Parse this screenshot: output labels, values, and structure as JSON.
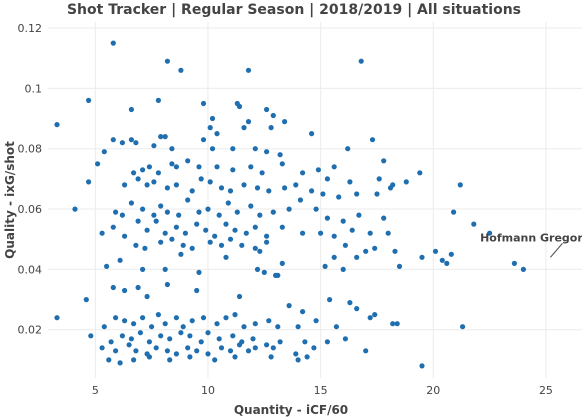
{
  "chart_data": {
    "type": "scatter",
    "title": "Shot Tracker | Regular Season | 2018/2019 | All situations",
    "xlabel": "Quantity - iCF/60",
    "ylabel": "Quality - ixG/shot",
    "xlim": [
      2.9,
      26.6
    ],
    "ylim": [
      0.004,
      0.122
    ],
    "x_ticks": [
      5,
      10,
      15,
      20,
      25
    ],
    "x_tick_labels": [
      "5",
      "10",
      "15",
      "20",
      "25"
    ],
    "y_ticks": [
      0.02,
      0.04,
      0.06,
      0.08,
      0.1,
      0.12
    ],
    "y_tick_labels": [
      "0.02",
      "0.04",
      "0.06",
      "0.08",
      "0.1",
      "0.12"
    ],
    "grid": true,
    "marker_color": "#1f6fb0",
    "annotation": {
      "text": "Hofmann Gregory",
      "x": 25.2,
      "y": 0.044
    },
    "points": [
      [
        5.8,
        0.115
      ],
      [
        8.2,
        0.109
      ],
      [
        8.8,
        0.106
      ],
      [
        16.8,
        0.109
      ],
      [
        11.8,
        0.106
      ],
      [
        3.3,
        0.088
      ],
      [
        4.7,
        0.096
      ],
      [
        6.6,
        0.093
      ],
      [
        7.8,
        0.096
      ],
      [
        9.8,
        0.095
      ],
      [
        11.3,
        0.095
      ],
      [
        11.4,
        0.094
      ],
      [
        12.6,
        0.093
      ],
      [
        12.9,
        0.091
      ],
      [
        10.2,
        0.09
      ],
      [
        10.1,
        0.087
      ],
      [
        11.8,
        0.089
      ],
      [
        12.8,
        0.087
      ],
      [
        13.4,
        0.089
      ],
      [
        14.6,
        0.085
      ],
      [
        17.3,
        0.083
      ],
      [
        10.4,
        0.085
      ],
      [
        11.6,
        0.087
      ],
      [
        7.9,
        0.084
      ],
      [
        5.4,
        0.079
      ],
      [
        5.8,
        0.083
      ],
      [
        6.2,
        0.082
      ],
      [
        6.6,
        0.083
      ],
      [
        6.8,
        0.082
      ],
      [
        7.6,
        0.081
      ],
      [
        8.1,
        0.084
      ],
      [
        8.4,
        0.08
      ],
      [
        9.8,
        0.083
      ],
      [
        10.2,
        0.08
      ],
      [
        11.1,
        0.08
      ],
      [
        12.1,
        0.08
      ],
      [
        12.6,
        0.079
      ],
      [
        13.2,
        0.078
      ],
      [
        16.2,
        0.08
      ],
      [
        17.8,
        0.076
      ],
      [
        5.1,
        0.075
      ],
      [
        6.7,
        0.072
      ],
      [
        7.1,
        0.073
      ],
      [
        7.4,
        0.074
      ],
      [
        8.4,
        0.075
      ],
      [
        8.6,
        0.074
      ],
      [
        9.1,
        0.076
      ],
      [
        9.6,
        0.074
      ],
      [
        10.4,
        0.074
      ],
      [
        11.1,
        0.073
      ],
      [
        11.9,
        0.074
      ],
      [
        12.4,
        0.072
      ],
      [
        13.3,
        0.075
      ],
      [
        14.2,
        0.072
      ],
      [
        14.9,
        0.073
      ],
      [
        15.6,
        0.074
      ],
      [
        17.6,
        0.07
      ],
      [
        18.2,
        0.068
      ],
      [
        18.8,
        0.069
      ],
      [
        19.4,
        0.072
      ],
      [
        15.3,
        0.07
      ],
      [
        16.3,
        0.069
      ],
      [
        4.7,
        0.069
      ],
      [
        6.3,
        0.068
      ],
      [
        6.9,
        0.07
      ],
      [
        7.3,
        0.068
      ],
      [
        7.6,
        0.069
      ],
      [
        7.8,
        0.072
      ],
      [
        8.2,
        0.067
      ],
      [
        8.6,
        0.068
      ],
      [
        9.3,
        0.066
      ],
      [
        9.7,
        0.07
      ],
      [
        10.1,
        0.069
      ],
      [
        10.6,
        0.067
      ],
      [
        11.0,
        0.066
      ],
      [
        11.6,
        0.068
      ],
      [
        12.2,
        0.067
      ],
      [
        12.7,
        0.066
      ],
      [
        13.4,
        0.067
      ],
      [
        13.9,
        0.068
      ],
      [
        14.6,
        0.066
      ],
      [
        15.1,
        0.065
      ],
      [
        15.8,
        0.064
      ],
      [
        16.6,
        0.065
      ],
      [
        17.5,
        0.065
      ],
      [
        18.1,
        0.067
      ],
      [
        21.2,
        0.068
      ],
      [
        4.1,
        0.06
      ],
      [
        5.9,
        0.059
      ],
      [
        6.2,
        0.058
      ],
      [
        6.6,
        0.062
      ],
      [
        7.1,
        0.06
      ],
      [
        7.6,
        0.058
      ],
      [
        7.9,
        0.061
      ],
      [
        8.2,
        0.059
      ],
      [
        8.7,
        0.058
      ],
      [
        9.1,
        0.063
      ],
      [
        9.6,
        0.059
      ],
      [
        10.0,
        0.06
      ],
      [
        10.5,
        0.058
      ],
      [
        10.9,
        0.062
      ],
      [
        11.3,
        0.059
      ],
      [
        11.9,
        0.061
      ],
      [
        12.3,
        0.058
      ],
      [
        12.9,
        0.059
      ],
      [
        13.6,
        0.06
      ],
      [
        14.1,
        0.063
      ],
      [
        14.8,
        0.06
      ],
      [
        15.3,
        0.057
      ],
      [
        16.0,
        0.056
      ],
      [
        16.7,
        0.058
      ],
      [
        17.8,
        0.057
      ],
      [
        20.9,
        0.059
      ],
      [
        21.8,
        0.055
      ],
      [
        22.5,
        0.052
      ],
      [
        5.3,
        0.052
      ],
      [
        5.8,
        0.054
      ],
      [
        6.3,
        0.051
      ],
      [
        6.9,
        0.056
      ],
      [
        7.3,
        0.053
      ],
      [
        7.7,
        0.056
      ],
      [
        8.1,
        0.052
      ],
      [
        8.6,
        0.054
      ],
      [
        9.0,
        0.052
      ],
      [
        9.5,
        0.055
      ],
      [
        9.9,
        0.053
      ],
      [
        10.3,
        0.051
      ],
      [
        10.8,
        0.055
      ],
      [
        11.2,
        0.053
      ],
      [
        11.7,
        0.052
      ],
      [
        12.1,
        0.054
      ],
      [
        12.6,
        0.051
      ],
      [
        13.3,
        0.054
      ],
      [
        14.2,
        0.052
      ],
      [
        15.0,
        0.052
      ],
      [
        15.6,
        0.051
      ],
      [
        16.4,
        0.053
      ],
      [
        17.2,
        0.052
      ],
      [
        18.0,
        0.052
      ],
      [
        6.8,
        0.048
      ],
      [
        7.2,
        0.047
      ],
      [
        7.9,
        0.049
      ],
      [
        8.4,
        0.05
      ],
      [
        8.9,
        0.048
      ],
      [
        9.3,
        0.047
      ],
      [
        10.1,
        0.049
      ],
      [
        10.6,
        0.048
      ],
      [
        11.0,
        0.05
      ],
      [
        11.5,
        0.048
      ],
      [
        12.1,
        0.047
      ],
      [
        12.6,
        0.049
      ],
      [
        16.1,
        0.048
      ],
      [
        17.0,
        0.046
      ],
      [
        17.4,
        0.047
      ],
      [
        18.3,
        0.046
      ],
      [
        19.5,
        0.044
      ],
      [
        20.1,
        0.046
      ],
      [
        20.8,
        0.045
      ],
      [
        6.1,
        0.043
      ],
      [
        8.8,
        0.045
      ],
      [
        10.8,
        0.044
      ],
      [
        12.3,
        0.046
      ],
      [
        13.3,
        0.042
      ],
      [
        15.6,
        0.044
      ],
      [
        16.6,
        0.044
      ],
      [
        18.5,
        0.041
      ],
      [
        20.4,
        0.043
      ],
      [
        20.6,
        0.042
      ],
      [
        23.6,
        0.042
      ],
      [
        24.0,
        0.04
      ],
      [
        5.5,
        0.041
      ],
      [
        7.1,
        0.04
      ],
      [
        8.1,
        0.04
      ],
      [
        9.6,
        0.039
      ],
      [
        12.2,
        0.04
      ],
      [
        13.1,
        0.038
      ],
      [
        15.2,
        0.041
      ],
      [
        16.0,
        0.04
      ],
      [
        12.5,
        0.039
      ],
      [
        4.6,
        0.03
      ],
      [
        5.8,
        0.034
      ],
      [
        6.3,
        0.033
      ],
      [
        6.9,
        0.034
      ],
      [
        7.3,
        0.031
      ],
      [
        8.2,
        0.035
      ],
      [
        9.5,
        0.033
      ],
      [
        11.4,
        0.031
      ],
      [
        13.0,
        0.038
      ],
      [
        13.6,
        0.028
      ],
      [
        14.2,
        0.026
      ],
      [
        15.4,
        0.03
      ],
      [
        16.3,
        0.029
      ],
      [
        16.6,
        0.027
      ],
      [
        17.2,
        0.024
      ],
      [
        18.2,
        0.022
      ],
      [
        18.4,
        0.022
      ],
      [
        21.3,
        0.021
      ],
      [
        3.3,
        0.024
      ],
      [
        5.4,
        0.021
      ],
      [
        5.9,
        0.024
      ],
      [
        6.3,
        0.023
      ],
      [
        6.7,
        0.022
      ],
      [
        7.1,
        0.024
      ],
      [
        7.5,
        0.021
      ],
      [
        7.8,
        0.025
      ],
      [
        8.1,
        0.022
      ],
      [
        8.6,
        0.024
      ],
      [
        8.9,
        0.021
      ],
      [
        9.3,
        0.023
      ],
      [
        9.8,
        0.024
      ],
      [
        10.4,
        0.022
      ],
      [
        10.8,
        0.024
      ],
      [
        11.2,
        0.025
      ],
      [
        11.6,
        0.021
      ],
      [
        12.1,
        0.022
      ],
      [
        12.7,
        0.023
      ],
      [
        13.1,
        0.021
      ],
      [
        14.0,
        0.021
      ],
      [
        14.8,
        0.023
      ],
      [
        15.7,
        0.021
      ],
      [
        17.4,
        0.025
      ],
      [
        4.8,
        0.018
      ],
      [
        5.7,
        0.016
      ],
      [
        6.2,
        0.018
      ],
      [
        6.6,
        0.017
      ],
      [
        7.0,
        0.019
      ],
      [
        7.4,
        0.016
      ],
      [
        7.9,
        0.018
      ],
      [
        8.3,
        0.017
      ],
      [
        8.8,
        0.019
      ],
      [
        9.2,
        0.018
      ],
      [
        9.7,
        0.016
      ],
      [
        10.0,
        0.019
      ],
      [
        10.5,
        0.017
      ],
      [
        11.1,
        0.018
      ],
      [
        11.5,
        0.016
      ],
      [
        12.0,
        0.017
      ],
      [
        12.6,
        0.015
      ],
      [
        13.2,
        0.016
      ],
      [
        14.3,
        0.016
      ],
      [
        15.3,
        0.016
      ],
      [
        16.1,
        0.017
      ],
      [
        5.3,
        0.014
      ],
      [
        5.9,
        0.013
      ],
      [
        6.5,
        0.015
      ],
      [
        6.8,
        0.013
      ],
      [
        7.3,
        0.012
      ],
      [
        7.7,
        0.014
      ],
      [
        8.2,
        0.013
      ],
      [
        8.6,
        0.012
      ],
      [
        9.1,
        0.014
      ],
      [
        9.5,
        0.013
      ],
      [
        10.0,
        0.012
      ],
      [
        10.6,
        0.014
      ],
      [
        11.0,
        0.013
      ],
      [
        11.4,
        0.015
      ],
      [
        11.8,
        0.013
      ],
      [
        12.1,
        0.014
      ],
      [
        12.9,
        0.014
      ],
      [
        13.9,
        0.012
      ],
      [
        14.7,
        0.014
      ],
      [
        17.0,
        0.013
      ],
      [
        5.6,
        0.01
      ],
      [
        6.1,
        0.009
      ],
      [
        6.7,
        0.01
      ],
      [
        7.4,
        0.011
      ],
      [
        8.3,
        0.01
      ],
      [
        9.2,
        0.011
      ],
      [
        10.3,
        0.01
      ],
      [
        11.2,
        0.011
      ],
      [
        12.8,
        0.011
      ],
      [
        14.0,
        0.01
      ],
      [
        14.4,
        0.011
      ],
      [
        19.5,
        0.008
      ]
    ]
  }
}
